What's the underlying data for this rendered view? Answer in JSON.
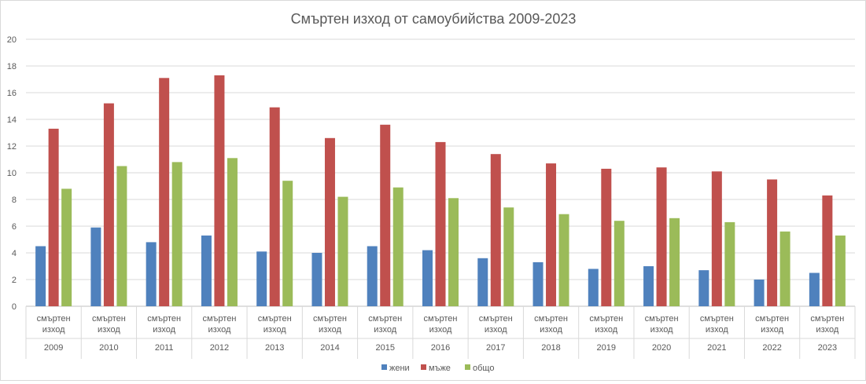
{
  "chart_data": {
    "type": "bar",
    "title": "Смъртен изход от самоубийства 2009-2023",
    "xlabel": "",
    "ylabel": "",
    "ylim": [
      0,
      20
    ],
    "yticks": [
      0,
      2,
      4,
      6,
      8,
      10,
      12,
      14,
      16,
      18,
      20
    ],
    "grid": true,
    "legend_position": "bottom",
    "category_label": "смъртен изход",
    "categories": [
      "2009",
      "2010",
      "2011",
      "2012",
      "2013",
      "2014",
      "2015",
      "2016",
      "2017",
      "2018",
      "2019",
      "2020",
      "2021",
      "2022",
      "2023"
    ],
    "series": [
      {
        "name": "жени",
        "color": "#4f81bd",
        "values": [
          4.5,
          5.9,
          4.8,
          5.3,
          4.1,
          4.0,
          4.5,
          4.2,
          3.6,
          3.3,
          2.8,
          3.0,
          2.7,
          2.0,
          2.5
        ]
      },
      {
        "name": "мъже",
        "color": "#c0504d",
        "values": [
          13.3,
          15.2,
          17.1,
          17.3,
          14.9,
          12.6,
          13.6,
          12.3,
          11.4,
          10.7,
          10.3,
          10.4,
          10.1,
          9.5,
          8.3
        ]
      },
      {
        "name": "общо",
        "color": "#9bbb59",
        "values": [
          8.8,
          10.5,
          10.8,
          11.1,
          9.4,
          8.2,
          8.9,
          8.1,
          7.4,
          6.9,
          6.4,
          6.6,
          6.3,
          5.6,
          5.3
        ]
      }
    ]
  }
}
